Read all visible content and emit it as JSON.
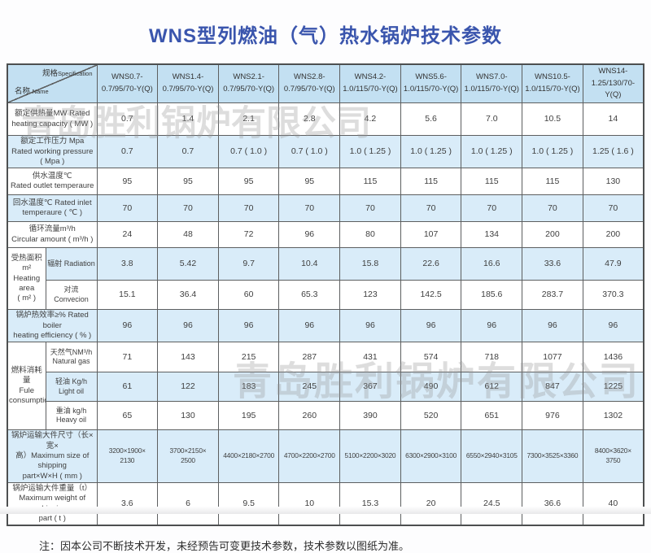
{
  "page": {
    "title": "WNS型列燃油（气）热水锅炉技术参数",
    "watermark": "青岛胜利锅炉有限公司",
    "note": "注：因本公司不断技术开发，未经预告可变更技术参数，技术参数以图纸为准。",
    "colors": {
      "title_blue": "#3a55ad",
      "header_bg": "#c3e0f2",
      "row_alt_bg": "#d9ecf9",
      "border": "#5d5f60",
      "watermark_gray": "#969696"
    }
  },
  "table": {
    "corner": {
      "spec_cn": "规格",
      "spec_en": "Specification",
      "name_cn": "名称",
      "name_en": "Name"
    },
    "columns": [
      "WNS0.7-\n0.7/95/70-Y(Q)",
      "WNS1.4-\n0.7/95/70-Y(Q)",
      "WNS2.1-\n0.7/95/70-Y(Q)",
      "WNS2.8-\n0.7/95/70-Y(Q)",
      "WNS4.2-\n1.0/115/70-Y(Q)",
      "WNS5.6-\n1.0/115/70-Y(Q)",
      "WNS7.0-\n1.0/115/70-Y(Q)",
      "WNS10.5-\n1.0/115/70-Y(Q)",
      "WNS14-\n1.25/130/70-Y(Q)"
    ],
    "rows": [
      {
        "label": "额定供热量MW Rated\nheating capacity ( MW )",
        "shade": false,
        "values": [
          "0.7",
          "1.4",
          "2.1",
          "2.8",
          "4.2",
          "5.6",
          "7.0",
          "10.5",
          "14"
        ]
      },
      {
        "label": "额定工作压力 Mpa\nRated working pressure\n( Mpa )",
        "shade": true,
        "values": [
          "0.7",
          "0.7",
          "0.7 ( 1.0 )",
          "0.7 ( 1.0 )",
          "1.0 ( 1.25 )",
          "1.0 ( 1.25 )",
          "1.0 ( 1.25 )",
          "1.0 ( 1.25 )",
          "1.25 ( 1.6 )"
        ]
      },
      {
        "label": "供水温度℃\nRated outlet  temperaure",
        "shade": false,
        "values": [
          "95",
          "95",
          "95",
          "95",
          "115",
          "115",
          "115",
          "115",
          "130"
        ]
      },
      {
        "label": "回水温度℃  Rated inlet\ntemperaure ( ℃ )",
        "shade": true,
        "values": [
          "70",
          "70",
          "70",
          "70",
          "70",
          "70",
          "70",
          "70",
          "70"
        ]
      },
      {
        "label": "循环流量m³/h\nCircular amount ( m³/h )",
        "shade": false,
        "values": [
          "24",
          "48",
          "72",
          "96",
          "80",
          "107",
          "134",
          "200",
          "200"
        ]
      },
      {
        "group": {
          "label": "受热面积m²\nHeating area\n( m² )",
          "span": 2
        },
        "sublabel": "辐射 Radiation",
        "shade": true,
        "values": [
          "3.8",
          "5.42",
          "9.7",
          "10.4",
          "15.8",
          "22.6",
          "16.6",
          "33.6",
          "47.9"
        ]
      },
      {
        "sublabel": "对流 Convecion",
        "shade": false,
        "values": [
          "15.1",
          "36.4",
          "60",
          "65.3",
          "123",
          "142.5",
          "185.6",
          "283.7",
          "370.3"
        ]
      },
      {
        "label": "锅炉热效率≥% Rated boiler\nheating efficiency ( % )",
        "shade": true,
        "values": [
          "96",
          "96",
          "96",
          "96",
          "96",
          "96",
          "96",
          "96",
          "96"
        ]
      },
      {
        "group": {
          "label": "燃料消耗量\nFule\nconsumption",
          "span": 3
        },
        "sublabel": "天然气NM³/h\nNatural gas",
        "shade": false,
        "values": [
          "71",
          "143",
          "215",
          "287",
          "431",
          "574",
          "718",
          "1077",
          "1436"
        ]
      },
      {
        "sublabel": "轻油 Kg/h\nLight oil",
        "shade": true,
        "values": [
          "61",
          "122",
          "183",
          "245",
          "367",
          "490",
          "612",
          "847",
          "1225"
        ]
      },
      {
        "sublabel": "重油 kg/h\nHeavy  oil",
        "shade": false,
        "values": [
          "65",
          "130",
          "195",
          "260",
          "390",
          "520",
          "651",
          "976",
          "1302"
        ]
      },
      {
        "label": "锅炉运输大件尺寸（长×宽×\n高）Maximum size of shipping\npart×W×H ( mm )",
        "shade": true,
        "values": [
          "3200×1900×\n2130",
          "3700×2150×\n2500",
          "4400×2180×2700",
          "4700×2200×2700",
          "5100×2200×3020",
          "6300×2900×3100",
          "6550×2940×3105",
          "7300×3525×3360",
          "8400×3620×\n3750"
        ]
      },
      {
        "label": "锅炉运输大件重量（t）\nMaximum weight of shipping\npart ( t )",
        "shade": false,
        "values": [
          "3.6",
          "6",
          "9.5",
          "10",
          "15.3",
          "20",
          "24.5",
          "36.6",
          "40"
        ]
      }
    ]
  }
}
